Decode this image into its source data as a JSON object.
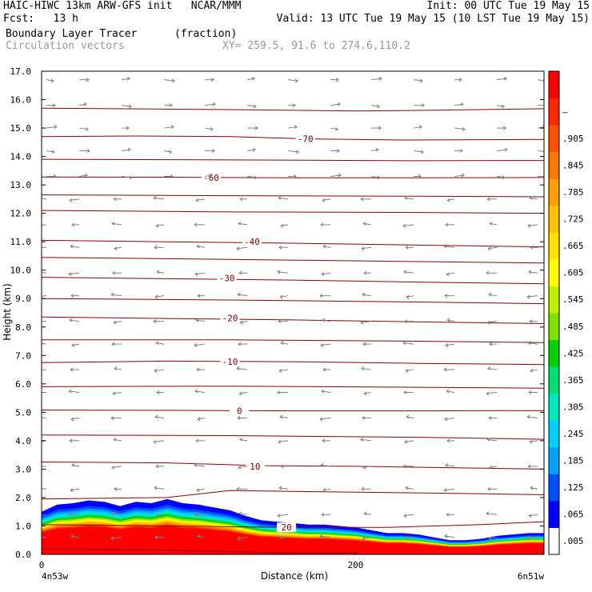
{
  "header": {
    "line1_left": "HAIC-HIWC 13km ARW-GFS init   NCAR/MMM",
    "line1_right": "Init: 00 UTC Tue 19 May 15",
    "line2_left": "Fcst:   13 h",
    "line2_right": "Valid: 13 UTC Tue 19 May 15 (10 LST Tue 19 May 15)",
    "field1_name": "Boundary Layer Tracer",
    "field1_units": "(fraction)",
    "field2_name": "Circulation vectors",
    "xy_text": "XY= 259.5, 91.6 to 274.6,110.2"
  },
  "chart_data": {
    "type": "heatmap",
    "title": "Boundary Layer Tracer",
    "xlabel": "Distance (km)",
    "ylabel": "Height (km)",
    "xlim": [
      0,
      320
    ],
    "ylim": [
      0,
      17
    ],
    "x_ticks": [
      {
        "value": 0,
        "label": "0"
      },
      {
        "value": 200,
        "label": "200"
      }
    ],
    "x_end_labels": {
      "left": "4n53w",
      "right": "6n51w"
    },
    "y_ticks": [
      0.0,
      1.0,
      2.0,
      3.0,
      4.0,
      5.0,
      6.0,
      7.0,
      8.0,
      9.0,
      10.0,
      11.0,
      12.0,
      13.0,
      14.0,
      15.0,
      16.0,
      17.0
    ],
    "y_tick_labels": [
      "0.0",
      "1.0",
      "2.0",
      "3.0",
      "4.0",
      "5.0",
      "6.0",
      "7.0",
      "8.0",
      "9.0",
      "10.0",
      "11.0",
      "12.0",
      "13.0",
      "14.0",
      "15.0",
      "16.0",
      "17.0"
    ],
    "colorbar": {
      "labels": [
        ".005",
        ".065",
        ".125",
        ".185",
        ".245",
        ".305",
        ".365",
        ".425",
        ".485",
        ".545",
        ".605",
        ".665",
        ".725",
        ".785",
        ".845",
        ".905",
        "–"
      ],
      "colors": [
        "#ffffff",
        "#0000ff",
        "#0050ff",
        "#00a0ff",
        "#00d0ff",
        "#00e8c0",
        "#00e070",
        "#00d000",
        "#80e000",
        "#c0f000",
        "#ffff00",
        "#ffe000",
        "#ffc000",
        "#ffa000",
        "#ff7800",
        "#ff5000",
        "#ff2800",
        "#ff0000"
      ]
    },
    "tracer_top_km": {
      "x": [
        0,
        10,
        20,
        30,
        40,
        50,
        60,
        70,
        80,
        90,
        100,
        110,
        120,
        130,
        140,
        150,
        160,
        170,
        180,
        190,
        200,
        210,
        220,
        230,
        240,
        250,
        260,
        270,
        280,
        290,
        300,
        310,
        320
      ],
      "values": [
        1.5,
        1.75,
        1.8,
        1.9,
        1.85,
        1.7,
        1.85,
        1.8,
        1.95,
        1.8,
        1.75,
        1.65,
        1.55,
        1.35,
        1.2,
        1.15,
        1.1,
        1.05,
        1.05,
        1.0,
        0.95,
        0.85,
        0.75,
        0.75,
        0.7,
        0.6,
        0.5,
        0.5,
        0.55,
        0.65,
        0.7,
        0.75,
        0.75
      ]
    },
    "temperature_contours": [
      {
        "label": "-70",
        "label_x": 168,
        "label_y": 14.62,
        "points": [
          [
            0,
            14.7
          ],
          [
            60,
            14.72
          ],
          [
            120,
            14.7
          ],
          [
            170,
            14.62
          ],
          [
            230,
            14.58
          ],
          [
            320,
            14.6
          ]
        ]
      },
      {
        "label": "-60",
        "label_x": 108,
        "label_y": 13.25,
        "points": [
          [
            0,
            13.28
          ],
          [
            80,
            13.27
          ],
          [
            160,
            13.25
          ],
          [
            240,
            13.25
          ],
          [
            320,
            13.26
          ]
        ]
      },
      {
        "label": "-40",
        "label_x": 134,
        "label_y": 11.0,
        "points": [
          [
            0,
            11.05
          ],
          [
            80,
            11.0
          ],
          [
            160,
            10.95
          ],
          [
            240,
            10.88
          ],
          [
            320,
            10.82
          ]
        ]
      },
      {
        "label": "-30",
        "label_x": 118,
        "label_y": 9.72,
        "points": [
          [
            0,
            9.75
          ],
          [
            80,
            9.7
          ],
          [
            160,
            9.65
          ],
          [
            240,
            9.58
          ],
          [
            320,
            9.52
          ]
        ]
      },
      {
        "label": "-20",
        "label_x": 120,
        "label_y": 8.32,
        "points": [
          [
            0,
            8.35
          ],
          [
            80,
            8.3
          ],
          [
            160,
            8.25
          ],
          [
            240,
            8.18
          ],
          [
            320,
            8.12
          ]
        ]
      },
      {
        "label": "-10",
        "label_x": 120,
        "label_y": 6.78,
        "points": [
          [
            0,
            6.75
          ],
          [
            80,
            6.8
          ],
          [
            160,
            6.78
          ],
          [
            240,
            6.72
          ],
          [
            320,
            6.68
          ]
        ]
      },
      {
        "label": "0",
        "label_x": 126,
        "label_y": 5.05,
        "points": [
          [
            0,
            5.08
          ],
          [
            80,
            5.07
          ],
          [
            160,
            5.05
          ],
          [
            240,
            5.05
          ],
          [
            320,
            5.06
          ]
        ]
      },
      {
        "label": "10",
        "label_x": 136,
        "label_y": 3.1,
        "points": [
          [
            0,
            3.25
          ],
          [
            80,
            3.22
          ],
          [
            140,
            3.12
          ],
          [
            200,
            3.1
          ],
          [
            260,
            3.05
          ],
          [
            320,
            3.0
          ]
        ]
      },
      {
        "label": "20",
        "label_x": 156,
        "label_y": 0.95,
        "points": [
          [
            0,
            1.05
          ],
          [
            80,
            1.0
          ],
          [
            156,
            0.95
          ],
          [
            220,
            0.95
          ],
          [
            280,
            1.05
          ],
          [
            320,
            1.15
          ]
        ]
      }
    ],
    "unlabeled_contours_km": [
      [
        [
          0,
          15.7
        ],
        [
          120,
          15.65
        ],
        [
          200,
          15.6
        ],
        [
          240,
          15.62
        ],
        [
          320,
          15.68
        ]
      ],
      [
        [
          0,
          13.9
        ],
        [
          120,
          13.88
        ],
        [
          240,
          13.85
        ],
        [
          320,
          13.86
        ]
      ],
      [
        [
          0,
          12.65
        ],
        [
          120,
          12.62
        ],
        [
          240,
          12.6
        ],
        [
          320,
          12.58
        ]
      ],
      [
        [
          0,
          12.1
        ],
        [
          120,
          12.05
        ],
        [
          240,
          12.03
        ],
        [
          320,
          12.0
        ]
      ],
      [
        [
          0,
          10.45
        ],
        [
          120,
          10.38
        ],
        [
          240,
          10.3
        ],
        [
          320,
          10.25
        ]
      ],
      [
        [
          0,
          9.0
        ],
        [
          120,
          8.95
        ],
        [
          240,
          8.88
        ],
        [
          320,
          8.82
        ]
      ],
      [
        [
          0,
          7.55
        ],
        [
          120,
          7.55
        ],
        [
          240,
          7.5
        ],
        [
          320,
          7.45
        ]
      ],
      [
        [
          0,
          5.9
        ],
        [
          120,
          5.92
        ],
        [
          240,
          5.88
        ],
        [
          320,
          5.85
        ]
      ],
      [
        [
          0,
          4.2
        ],
        [
          120,
          4.18
        ],
        [
          240,
          4.12
        ],
        [
          320,
          4.05
        ]
      ],
      [
        [
          0,
          1.95
        ],
        [
          80,
          2.0
        ],
        [
          120,
          2.25
        ],
        [
          180,
          2.2
        ],
        [
          260,
          2.15
        ],
        [
          320,
          2.1
        ]
      ],
      [
        [
          0,
          0.2
        ],
        [
          80,
          0.15
        ],
        [
          160,
          0.05
        ],
        [
          200,
          0.05
        ]
      ]
    ],
    "circulation_vectors": {
      "rows_km": [
        16.7,
        15.8,
        15.0,
        14.2,
        13.3,
        12.5,
        11.6,
        10.8,
        9.9,
        9.1,
        8.2,
        7.4,
        6.5,
        5.7,
        4.8,
        4.0,
        3.1,
        2.3,
        1.4,
        0.6
      ],
      "cols_km": [
        3,
        24,
        51,
        78,
        104,
        131,
        157,
        184,
        210,
        237,
        263,
        290,
        316
      ],
      "upper_direction": "east",
      "lower_direction": "west",
      "reversal_height_km": 13.0
    }
  }
}
